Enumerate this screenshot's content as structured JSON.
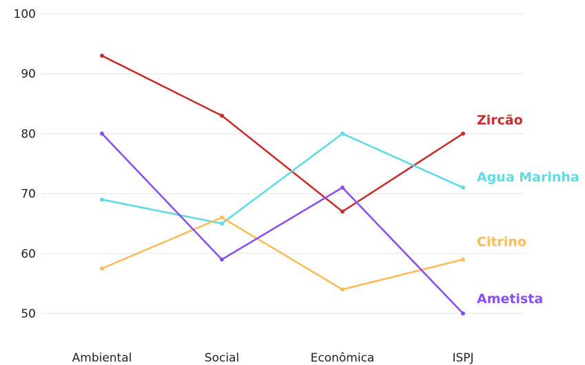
{
  "chart_data": {
    "type": "line",
    "title": "",
    "xlabel": "",
    "ylabel": "",
    "categories": [
      "Ambiental",
      "Social",
      "Econômica",
      "ISPJ"
    ],
    "ylim": [
      50,
      100
    ],
    "yticks": [
      50,
      60,
      70,
      80,
      90,
      100
    ],
    "grid": true,
    "legend": "right-end labels",
    "series": [
      {
        "name": "Zircão",
        "color": "#c62f2f",
        "values": [
          93,
          83,
          67,
          80
        ]
      },
      {
        "name": "Agua Marinha",
        "color": "#5fdce3",
        "values": [
          69,
          65,
          80,
          71
        ]
      },
      {
        "name": "Citrino",
        "color": "#fbbd5c",
        "values": [
          57.5,
          66,
          54,
          59
        ]
      },
      {
        "name": "Ametista",
        "color": "#8b4ff0",
        "values": [
          80,
          59,
          71,
          50
        ]
      }
    ]
  }
}
